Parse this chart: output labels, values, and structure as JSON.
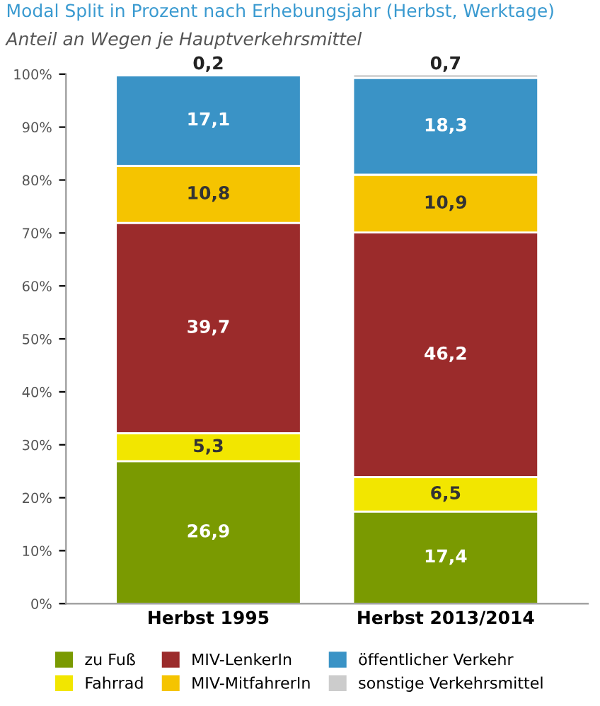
{
  "chart_data": {
    "type": "bar",
    "stacked": true,
    "title": "Modal Split in Prozent nach Erhebungsjahr (Herbst, Werktage)",
    "subtitle": "Anteil an Wegen je Hauptverkehrsmittel",
    "categories": [
      "Herbst 1995",
      "Herbst 2013/2014"
    ],
    "series": [
      {
        "name": "zu Fuß",
        "color": "#7a9a01",
        "values": [
          26.9,
          17.4
        ],
        "value_labels": [
          "26,9",
          "17,4"
        ]
      },
      {
        "name": "Fahrrad",
        "color": "#f2e600",
        "values": [
          5.3,
          6.5
        ],
        "value_labels": [
          "5,3",
          "6,5"
        ]
      },
      {
        "name": "MIV-LenkerIn",
        "color": "#9b2b2b",
        "values": [
          39.7,
          46.2
        ],
        "value_labels": [
          "39,7",
          "46,2"
        ]
      },
      {
        "name": "MIV-MitfahrerIn",
        "color": "#f5c400",
        "values": [
          10.8,
          10.9
        ],
        "value_labels": [
          "10,8",
          "10,9"
        ]
      },
      {
        "name": "öffentlicher Verkehr",
        "color": "#3a93c6",
        "values": [
          17.1,
          18.3
        ],
        "value_labels": [
          "17,1",
          "18,3"
        ]
      },
      {
        "name": "sonstige Verkehrsmittel",
        "color": "#cccccc",
        "values": [
          0.2,
          0.7
        ],
        "value_labels": [
          "0,2",
          "0,7"
        ]
      }
    ],
    "ylim": [
      0,
      100
    ],
    "yticks": [
      {
        "value": 0,
        "label": "0%"
      },
      {
        "value": 10,
        "label": "10%"
      },
      {
        "value": 20,
        "label": "20%"
      },
      {
        "value": 30,
        "label": "30%"
      },
      {
        "value": 40,
        "label": "40%"
      },
      {
        "value": 50,
        "label": "50%"
      },
      {
        "value": 60,
        "label": "60%"
      },
      {
        "value": 70,
        "label": "70%"
      },
      {
        "value": 80,
        "label": "80%"
      },
      {
        "value": 90,
        "label": "90%"
      },
      {
        "value": 100,
        "label": "100%"
      }
    ],
    "grid": false,
    "legend": "bottom"
  }
}
